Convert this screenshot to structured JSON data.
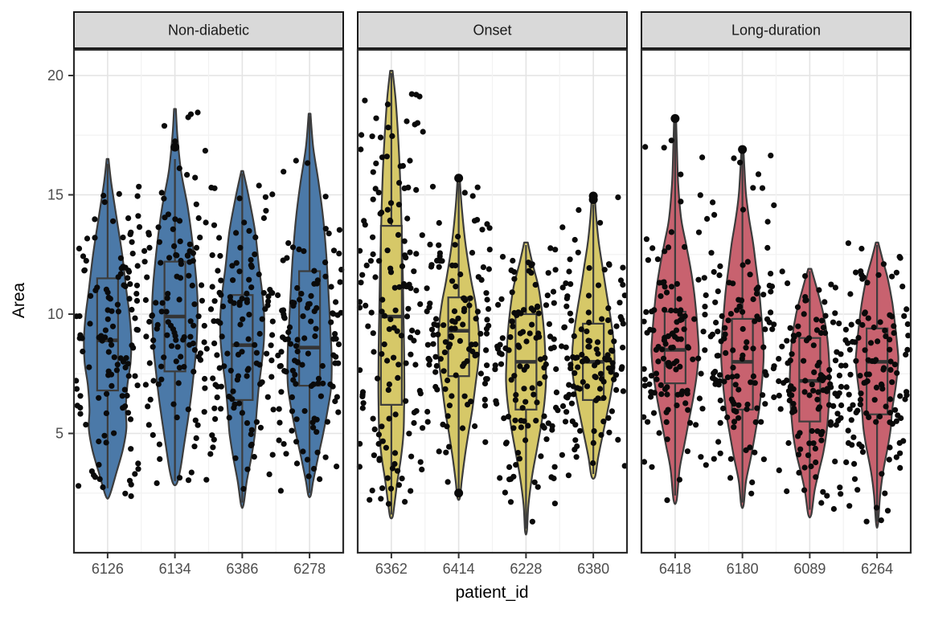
{
  "chart": {
    "ylabel": "Area",
    "xlabel": "patient_id"
  },
  "chart_data": {
    "type": "violin",
    "title": "",
    "xlabel": "patient_id",
    "ylabel": "Area",
    "y_ticks": [
      5,
      10,
      15,
      20
    ],
    "y_minor_ticks": [
      2.5,
      7.5,
      12.5,
      17.5
    ],
    "ylim": [
      0,
      21.1
    ],
    "grid": true,
    "style": {
      "strip_bg": "#d9d9d9",
      "strip_border": "#1a1a1a",
      "panel_bg": "#ffffff",
      "panel_border": "#2b2b2b",
      "grid_major": "#e4e4e4",
      "grid_minor": "#f2f2f2",
      "outline": "#3c3c3c",
      "point_color": "#0a0a0a",
      "tick_label_color": "#4d4d4d",
      "axis_title_color": "#000000"
    },
    "facets": [
      {
        "label": "Non-diabetic",
        "fill": "#4b79a8",
        "patients": [
          {
            "id": "6126",
            "n": 125,
            "min": 2.3,
            "whisker_lo": 2.7,
            "q1": 6.8,
            "median": 8.9,
            "q3": 11.5,
            "whisker_hi": 16.3,
            "max": 16.5,
            "outliers": [],
            "profile": [
              [
                16.5,
                0.03
              ],
              [
                15.5,
                0.12
              ],
              [
                14,
                0.3
              ],
              [
                12.5,
                0.48
              ],
              [
                11,
                0.62
              ],
              [
                10,
                0.72
              ],
              [
                9,
                0.78
              ],
              [
                8,
                0.76
              ],
              [
                7,
                0.65
              ],
              [
                6,
                0.6
              ],
              [
                5.2,
                0.62
              ],
              [
                4.3,
                0.5
              ],
              [
                3.4,
                0.3
              ],
              [
                2.6,
                0.12
              ],
              [
                2.3,
                0.03
              ]
            ]
          },
          {
            "id": "6134",
            "n": 125,
            "min": 2.9,
            "whisker_lo": 3.0,
            "q1": 7.6,
            "median": 9.9,
            "q3": 12.2,
            "whisker_hi": 16.5,
            "max": 18.6,
            "outliers": [
              17.0
            ],
            "profile": [
              [
                18.6,
                0.03
              ],
              [
                17.5,
                0.08
              ],
              [
                16,
                0.2
              ],
              [
                14.5,
                0.42
              ],
              [
                13,
                0.58
              ],
              [
                11.5,
                0.7
              ],
              [
                10.5,
                0.75
              ],
              [
                9.5,
                0.74
              ],
              [
                8.5,
                0.7
              ],
              [
                7.5,
                0.62
              ],
              [
                6.5,
                0.53
              ],
              [
                5.5,
                0.42
              ],
              [
                4.5,
                0.3
              ],
              [
                3.5,
                0.18
              ],
              [
                2.9,
                0.06
              ]
            ]
          },
          {
            "id": "6386",
            "n": 125,
            "min": 2.0,
            "whisker_lo": 2.1,
            "q1": 6.4,
            "median": 8.7,
            "q3": 10.8,
            "whisker_hi": 15.9,
            "max": 16.0,
            "outliers": [],
            "profile": [
              [
                16.0,
                0.03
              ],
              [
                15,
                0.2
              ],
              [
                13.5,
                0.42
              ],
              [
                12,
                0.55
              ],
              [
                11,
                0.65
              ],
              [
                10,
                0.72
              ],
              [
                9,
                0.72
              ],
              [
                8,
                0.65
              ],
              [
                7,
                0.55
              ],
              [
                6,
                0.48
              ],
              [
                5,
                0.42
              ],
              [
                4,
                0.3
              ],
              [
                3,
                0.15
              ],
              [
                2.0,
                0.04
              ]
            ]
          },
          {
            "id": "6278",
            "n": 125,
            "min": 2.4,
            "whisker_lo": 2.5,
            "q1": 7.0,
            "median": 8.6,
            "q3": 11.8,
            "whisker_hi": 18.3,
            "max": 18.4,
            "outliers": [],
            "profile": [
              [
                18.4,
                0.03
              ],
              [
                17,
                0.12
              ],
              [
                15.5,
                0.3
              ],
              [
                14,
                0.45
              ],
              [
                12.5,
                0.55
              ],
              [
                11,
                0.62
              ],
              [
                9.5,
                0.68
              ],
              [
                8.5,
                0.72
              ],
              [
                7.5,
                0.73
              ],
              [
                6.8,
                0.7
              ],
              [
                6,
                0.6
              ],
              [
                5,
                0.45
              ],
              [
                4,
                0.28
              ],
              [
                3,
                0.12
              ],
              [
                2.4,
                0.04
              ]
            ]
          }
        ]
      },
      {
        "label": "Onset",
        "fill": "#d6c868",
        "patients": [
          {
            "id": "6362",
            "n": 150,
            "min": 1.5,
            "whisker_lo": 1.6,
            "q1": 6.2,
            "median": 9.9,
            "q3": 13.7,
            "whisker_hi": 20.1,
            "max": 20.2,
            "outliers": [],
            "profile": [
              [
                20.2,
                0.04
              ],
              [
                19,
                0.14
              ],
              [
                17.5,
                0.22
              ],
              [
                16,
                0.28
              ],
              [
                14.5,
                0.32
              ],
              [
                13,
                0.35
              ],
              [
                11.5,
                0.38
              ],
              [
                10,
                0.4
              ],
              [
                8.5,
                0.42
              ],
              [
                7,
                0.43
              ],
              [
                6,
                0.42
              ],
              [
                5,
                0.4
              ],
              [
                4,
                0.32
              ],
              [
                3,
                0.2
              ],
              [
                2,
                0.1
              ],
              [
                1.5,
                0.04
              ]
            ]
          },
          {
            "id": "6414",
            "n": 125,
            "min": 2.3,
            "whisker_lo": 2.6,
            "q1": 7.4,
            "median": 9.3,
            "q3": 10.7,
            "whisker_hi": 15.5,
            "max": 15.8,
            "outliers": [
              15.7,
              2.5
            ],
            "profile": [
              [
                15.8,
                0.03
              ],
              [
                14.5,
                0.1
              ],
              [
                13,
                0.22
              ],
              [
                11.5,
                0.4
              ],
              [
                10.5,
                0.55
              ],
              [
                9.5,
                0.65
              ],
              [
                8.8,
                0.68
              ],
              [
                8,
                0.65
              ],
              [
                7,
                0.55
              ],
              [
                6,
                0.45
              ],
              [
                5,
                0.32
              ],
              [
                4,
                0.2
              ],
              [
                3,
                0.1
              ],
              [
                2.3,
                0.04
              ]
            ]
          },
          {
            "id": "6228",
            "n": 125,
            "min": 0.9,
            "whisker_lo": 1.0,
            "q1": 6.0,
            "median": 8.0,
            "q3": 10.0,
            "whisker_hi": 12.9,
            "max": 13.0,
            "outliers": [],
            "profile": [
              [
                13.0,
                0.06
              ],
              [
                12.2,
                0.2
              ],
              [
                11.2,
                0.4
              ],
              [
                10.2,
                0.52
              ],
              [
                9.2,
                0.6
              ],
              [
                8.2,
                0.64
              ],
              [
                7.2,
                0.66
              ],
              [
                6.2,
                0.6
              ],
              [
                5.2,
                0.48
              ],
              [
                4.2,
                0.34
              ],
              [
                3.2,
                0.2
              ],
              [
                2,
                0.08
              ],
              [
                0.9,
                0.03
              ]
            ]
          },
          {
            "id": "6380",
            "n": 125,
            "min": 3.2,
            "whisker_lo": 3.3,
            "q1": 6.4,
            "median": 8.0,
            "q3": 9.6,
            "whisker_hi": 14.6,
            "max": 14.9,
            "outliers": [
              14.8,
              14.95
            ],
            "profile": [
              [
                14.9,
                0.05
              ],
              [
                14,
                0.1
              ],
              [
                13,
                0.18
              ],
              [
                12,
                0.3
              ],
              [
                11,
                0.42
              ],
              [
                10,
                0.55
              ],
              [
                9,
                0.66
              ],
              [
                8.2,
                0.7
              ],
              [
                7.5,
                0.68
              ],
              [
                6.8,
                0.6
              ],
              [
                6,
                0.48
              ],
              [
                5,
                0.32
              ],
              [
                4,
                0.16
              ],
              [
                3.2,
                0.06
              ]
            ]
          }
        ]
      },
      {
        "label": "Long-duration",
        "fill": "#c8626f",
        "patients": [
          {
            "id": "6418",
            "n": 125,
            "min": 2.2,
            "whisker_lo": 2.4,
            "q1": 7.1,
            "median": 8.5,
            "q3": 10.1,
            "whisker_hi": 18.2,
            "max": 18.3,
            "outliers": [
              18.2
            ],
            "profile": [
              [
                18.3,
                0.03
              ],
              [
                17,
                0.06
              ],
              [
                15.5,
                0.1
              ],
              [
                14,
                0.2
              ],
              [
                13,
                0.35
              ],
              [
                12,
                0.5
              ],
              [
                11,
                0.62
              ],
              [
                10,
                0.7
              ],
              [
                9,
                0.76
              ],
              [
                8.4,
                0.78
              ],
              [
                7.5,
                0.72
              ],
              [
                6.5,
                0.6
              ],
              [
                5.5,
                0.45
              ],
              [
                4.5,
                0.3
              ],
              [
                3.5,
                0.15
              ],
              [
                2.2,
                0.05
              ]
            ]
          },
          {
            "id": "6180",
            "n": 125,
            "min": 2.0,
            "whisker_lo": 2.1,
            "q1": 6.0,
            "median": 8.0,
            "q3": 9.8,
            "whisker_hi": 16.8,
            "max": 17.0,
            "outliers": [
              16.9
            ],
            "profile": [
              [
                17.0,
                0.03
              ],
              [
                16,
                0.07
              ],
              [
                15,
                0.12
              ],
              [
                14,
                0.22
              ],
              [
                13,
                0.35
              ],
              [
                12,
                0.45
              ],
              [
                11,
                0.55
              ],
              [
                10,
                0.62
              ],
              [
                9,
                0.68
              ],
              [
                8.2,
                0.7
              ],
              [
                7.2,
                0.65
              ],
              [
                6,
                0.55
              ],
              [
                5,
                0.42
              ],
              [
                4,
                0.28
              ],
              [
                3,
                0.12
              ],
              [
                2.0,
                0.04
              ]
            ]
          },
          {
            "id": "6089",
            "n": 125,
            "min": 1.6,
            "whisker_lo": 1.8,
            "q1": 5.5,
            "median": 7.2,
            "q3": 9.0,
            "whisker_hi": 11.8,
            "max": 11.9,
            "outliers": [],
            "profile": [
              [
                11.9,
                0.05
              ],
              [
                11,
                0.25
              ],
              [
                10,
                0.45
              ],
              [
                9,
                0.58
              ],
              [
                8,
                0.64
              ],
              [
                7,
                0.66
              ],
              [
                6,
                0.62
              ],
              [
                5,
                0.55
              ],
              [
                4.2,
                0.45
              ],
              [
                3.4,
                0.3
              ],
              [
                2.6,
                0.16
              ],
              [
                1.6,
                0.05
              ]
            ]
          },
          {
            "id": "6264",
            "n": 125,
            "min": 1.2,
            "whisker_lo": 1.3,
            "q1": 5.8,
            "median": 8.0,
            "q3": 9.4,
            "whisker_hi": 12.9,
            "max": 13.0,
            "outliers": [],
            "profile": [
              [
                13.0,
                0.04
              ],
              [
                12.3,
                0.18
              ],
              [
                11.5,
                0.35
              ],
              [
                10.5,
                0.5
              ],
              [
                9.5,
                0.6
              ],
              [
                8.5,
                0.68
              ],
              [
                8,
                0.7
              ],
              [
                7,
                0.62
              ],
              [
                6,
                0.5
              ],
              [
                5.2,
                0.45
              ],
              [
                4.4,
                0.35
              ],
              [
                3.4,
                0.2
              ],
              [
                2.4,
                0.1
              ],
              [
                1.2,
                0.03
              ]
            ]
          }
        ]
      }
    ]
  }
}
